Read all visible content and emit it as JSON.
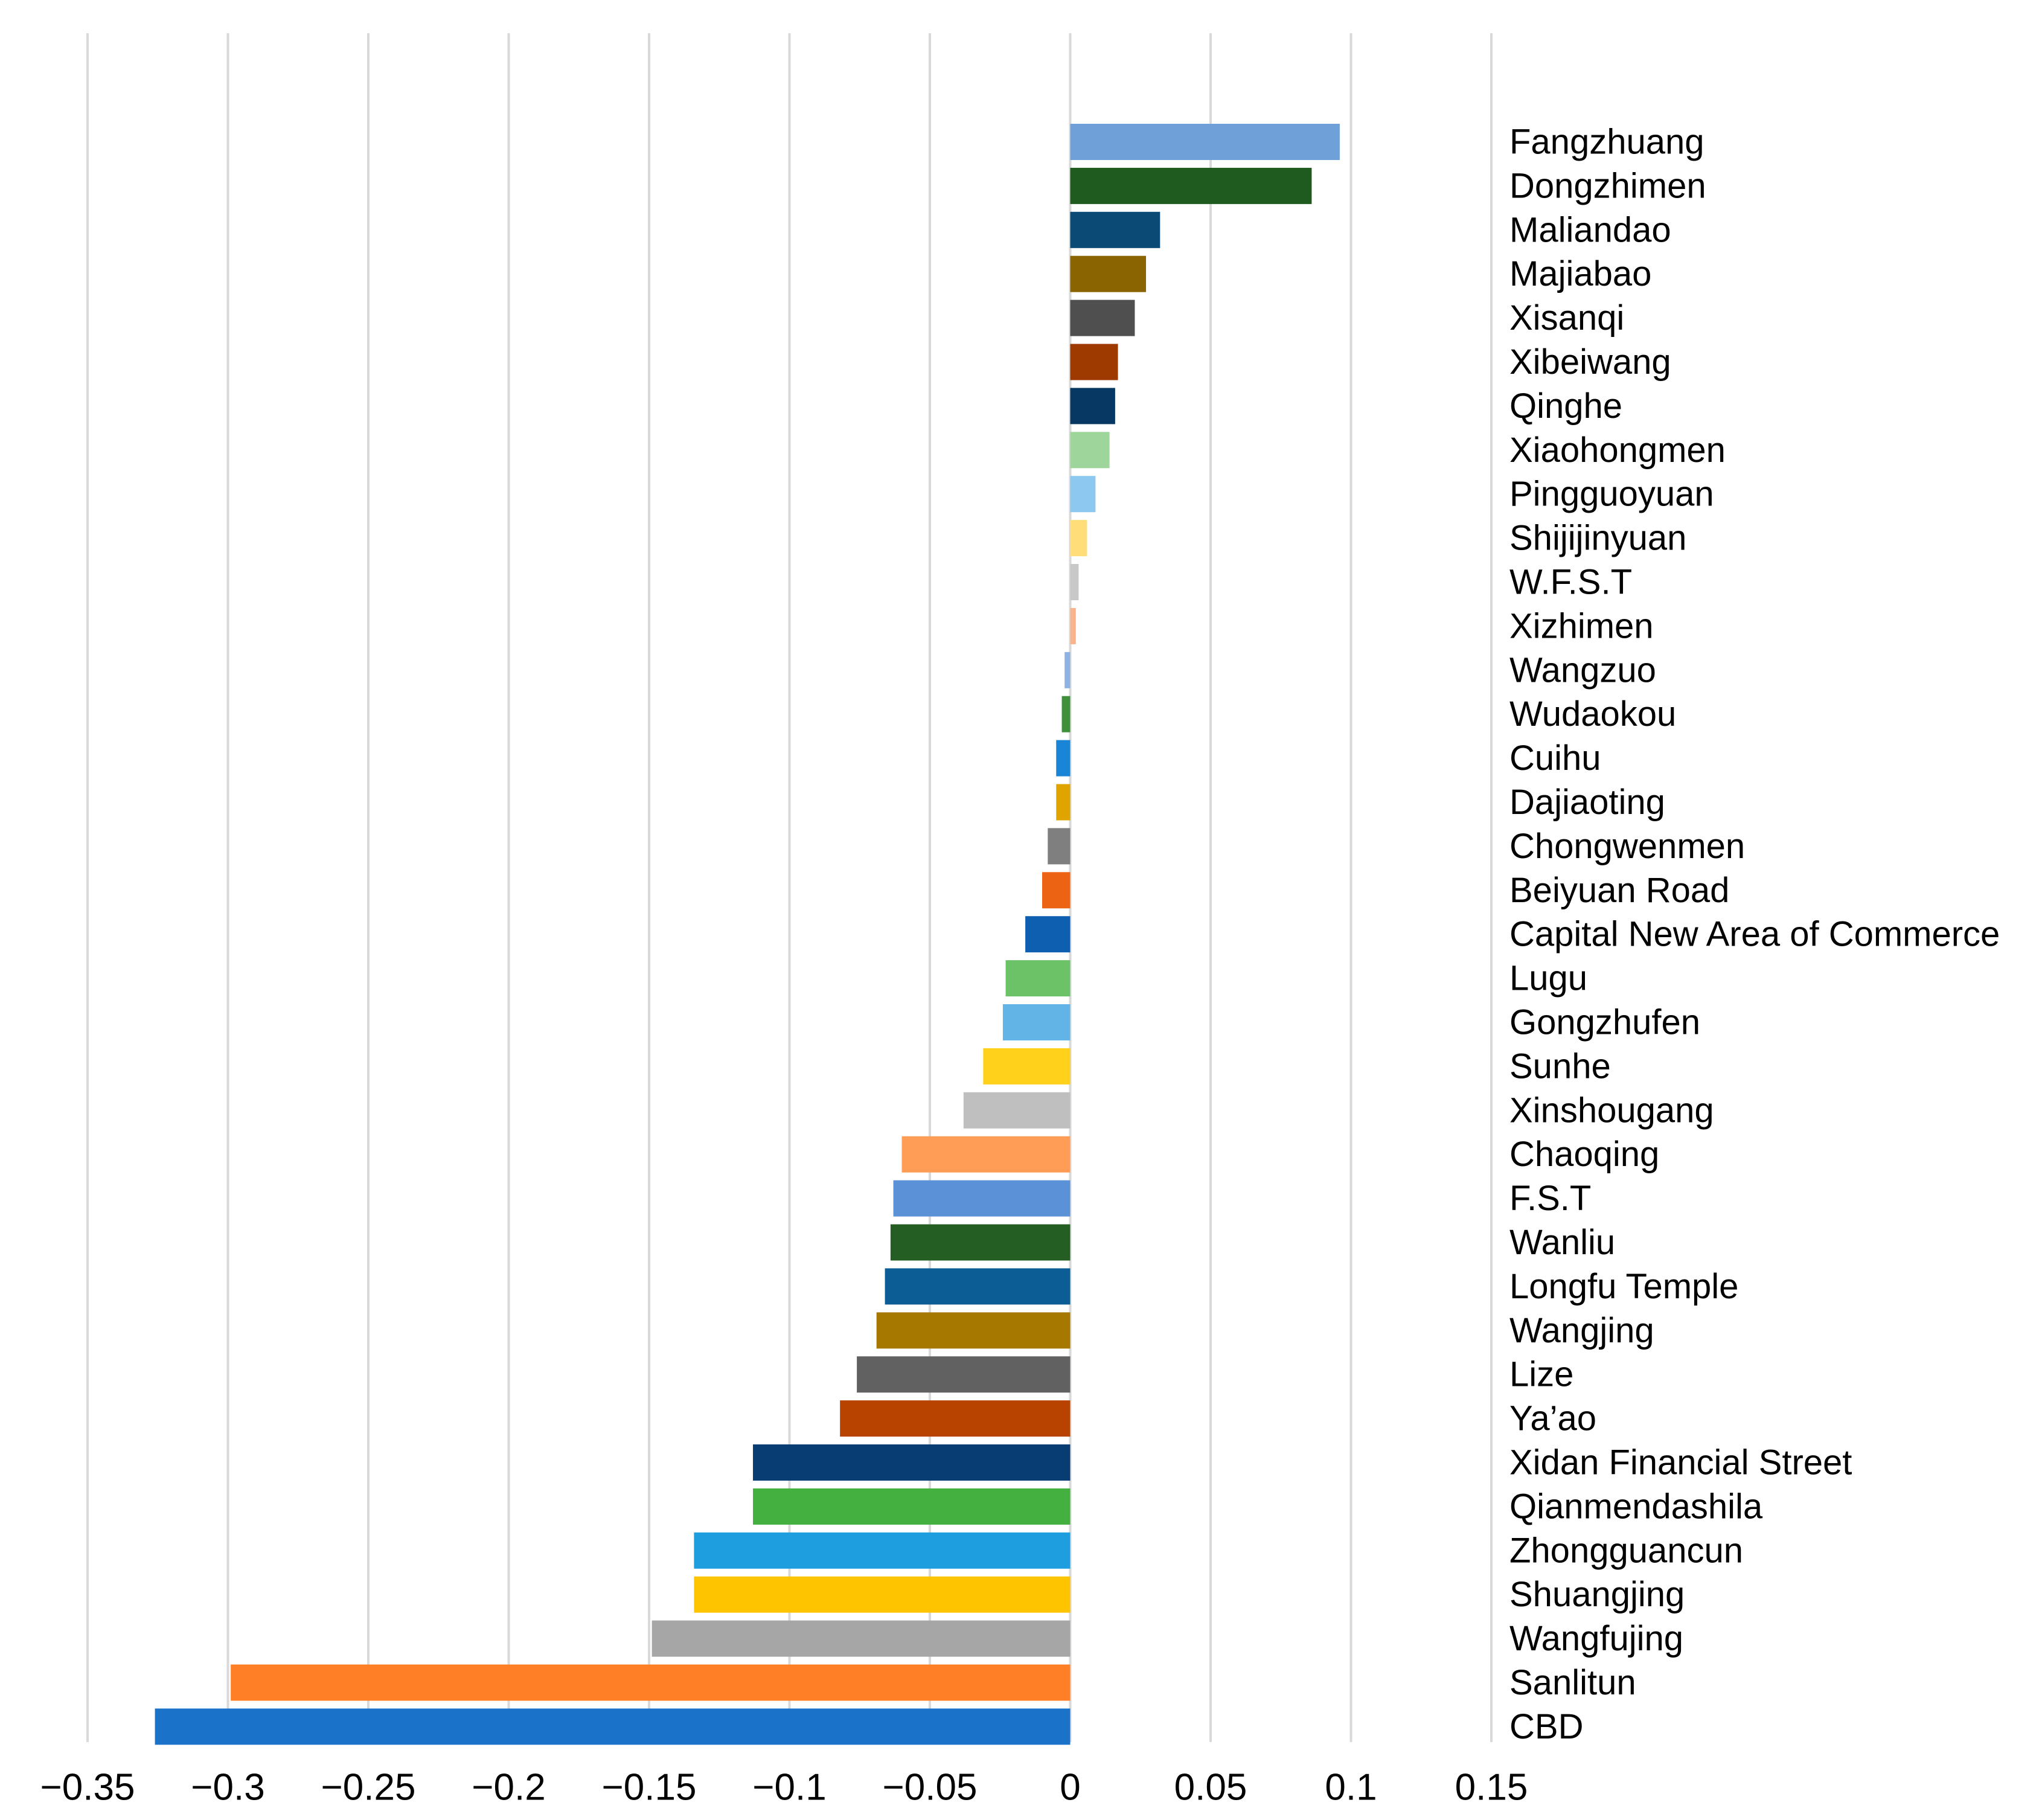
{
  "chart_data": {
    "type": "bar",
    "orientation": "horizontal",
    "title": "",
    "xlabel": "",
    "ylabel": "",
    "xlim": [
      -0.35,
      0.15
    ],
    "ticks": [
      -0.35,
      -0.3,
      -0.25,
      -0.2,
      -0.15,
      -0.1,
      -0.05,
      0,
      0.05,
      0.1,
      0.15
    ],
    "tick_labels": [
      "−0.35",
      "−0.3",
      "−0.25",
      "−0.2",
      "−0.15",
      "−0.1",
      "−0.05",
      "0",
      "0.05",
      "0.1",
      "0.15"
    ],
    "grid": "vertical",
    "legend": "none",
    "bars": [
      {
        "label": "Fangzhuang",
        "value": 0.096,
        "color": "#6fa1d8"
      },
      {
        "label": "Dongzhimen",
        "value": 0.086,
        "color": "#1f5a1f"
      },
      {
        "label": "Maliandao",
        "value": 0.032,
        "color": "#0b4a75"
      },
      {
        "label": "Majiabao",
        "value": 0.027,
        "color": "#8a6400"
      },
      {
        "label": "Xisanqi",
        "value": 0.023,
        "color": "#4f4f4f"
      },
      {
        "label": "Xibeiwang",
        "value": 0.017,
        "color": "#9e3a00"
      },
      {
        "label": "Qinghe",
        "value": 0.016,
        "color": "#073863"
      },
      {
        "label": "Xiaohongmen",
        "value": 0.014,
        "color": "#9dd59b"
      },
      {
        "label": "Pingguoyuan",
        "value": 0.009,
        "color": "#8cc8f0"
      },
      {
        "label": "Shijijinyuan",
        "value": 0.006,
        "color": "#ffde79"
      },
      {
        "label": "W.F.S.T",
        "value": 0.003,
        "color": "#c8c8c8"
      },
      {
        "label": "Xizhimen",
        "value": 0.002,
        "color": "#f8b48c"
      },
      {
        "label": "Wangzuo",
        "value": -0.002,
        "color": "#8fb2e3"
      },
      {
        "label": "Wudaokou",
        "value": -0.003,
        "color": "#3f8f3b"
      },
      {
        "label": "Cuihu",
        "value": -0.005,
        "color": "#1a84d6"
      },
      {
        "label": "Dajiaoting",
        "value": -0.005,
        "color": "#e0a400"
      },
      {
        "label": "Chongwenmen",
        "value": -0.008,
        "color": "#7f7f7f"
      },
      {
        "label": "Beiyuan Road",
        "value": -0.01,
        "color": "#ec6313"
      },
      {
        "label": "Capital New Area of Commerce",
        "value": -0.016,
        "color": "#0e5fb0"
      },
      {
        "label": "Lugu",
        "value": -0.023,
        "color": "#6cc266"
      },
      {
        "label": "Gongzhufen",
        "value": -0.024,
        "color": "#62b4e6"
      },
      {
        "label": "Sunhe",
        "value": -0.031,
        "color": "#ffd11a"
      },
      {
        "label": "Xinshougang",
        "value": -0.038,
        "color": "#bfbfbf"
      },
      {
        "label": "Chaoqing",
        "value": -0.06,
        "color": "#ff9d57"
      },
      {
        "label": "F.S.T",
        "value": -0.063,
        "color": "#5b91d6"
      },
      {
        "label": "Wanliu",
        "value": -0.064,
        "color": "#245e22"
      },
      {
        "label": "Longfu Temple",
        "value": -0.066,
        "color": "#0c5d95"
      },
      {
        "label": "Wangjing",
        "value": -0.069,
        "color": "#a67800"
      },
      {
        "label": "Lize",
        "value": -0.076,
        "color": "#616161"
      },
      {
        "label": "Ya’ao",
        "value": -0.082,
        "color": "#b84300"
      },
      {
        "label": "Xidan Financial Street",
        "value": -0.113,
        "color": "#073d72"
      },
      {
        "label": "Qianmendashila",
        "value": -0.113,
        "color": "#43b040"
      },
      {
        "label": "Zhongguancun",
        "value": -0.134,
        "color": "#1e9ede"
      },
      {
        "label": "Shuangjing",
        "value": -0.134,
        "color": "#ffc400"
      },
      {
        "label": "Wangfujing",
        "value": -0.149,
        "color": "#a6a6a6"
      },
      {
        "label": "Sanlitun",
        "value": -0.299,
        "color": "#ff7f27"
      },
      {
        "label": "CBD",
        "value": -0.326,
        "color": "#1a73c9"
      }
    ]
  }
}
